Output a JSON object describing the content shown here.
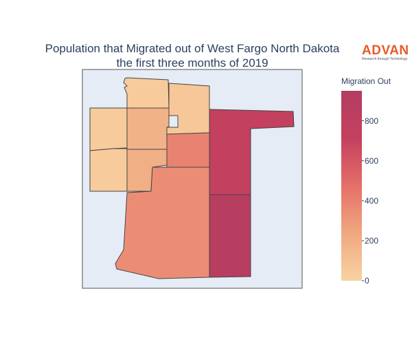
{
  "title": {
    "line1": "Population that Migrated out of West Fargo North Dakota",
    "line2": "the first three months of 2019"
  },
  "logo": {
    "name": "ADVAN",
    "tagline": "Research through Technology"
  },
  "colorbar": {
    "title": "Migration Out",
    "range": [
      0,
      950
    ],
    "ticks": [
      0,
      200,
      400,
      600,
      800
    ],
    "colorscale": [
      "#f8d2a2",
      "#f0a880",
      "#e56f68",
      "#c4405f",
      "#b33d62"
    ]
  },
  "map_background": "#e5ecf6",
  "regions": [
    {
      "id": "north-top",
      "value": 40
    },
    {
      "id": "west-upper",
      "value": 40
    },
    {
      "id": "west-lower",
      "value": 40
    },
    {
      "id": "center-upper",
      "value": 180
    },
    {
      "id": "center-mid",
      "value": 200
    },
    {
      "id": "center-lower",
      "value": 220
    },
    {
      "id": "east-top",
      "value": 60
    },
    {
      "id": "east-upper-small",
      "value": 390
    },
    {
      "id": "south-large",
      "value": 350
    },
    {
      "id": "far-east-upper",
      "value": 720
    },
    {
      "id": "far-east-lower",
      "value": 890
    }
  ]
}
